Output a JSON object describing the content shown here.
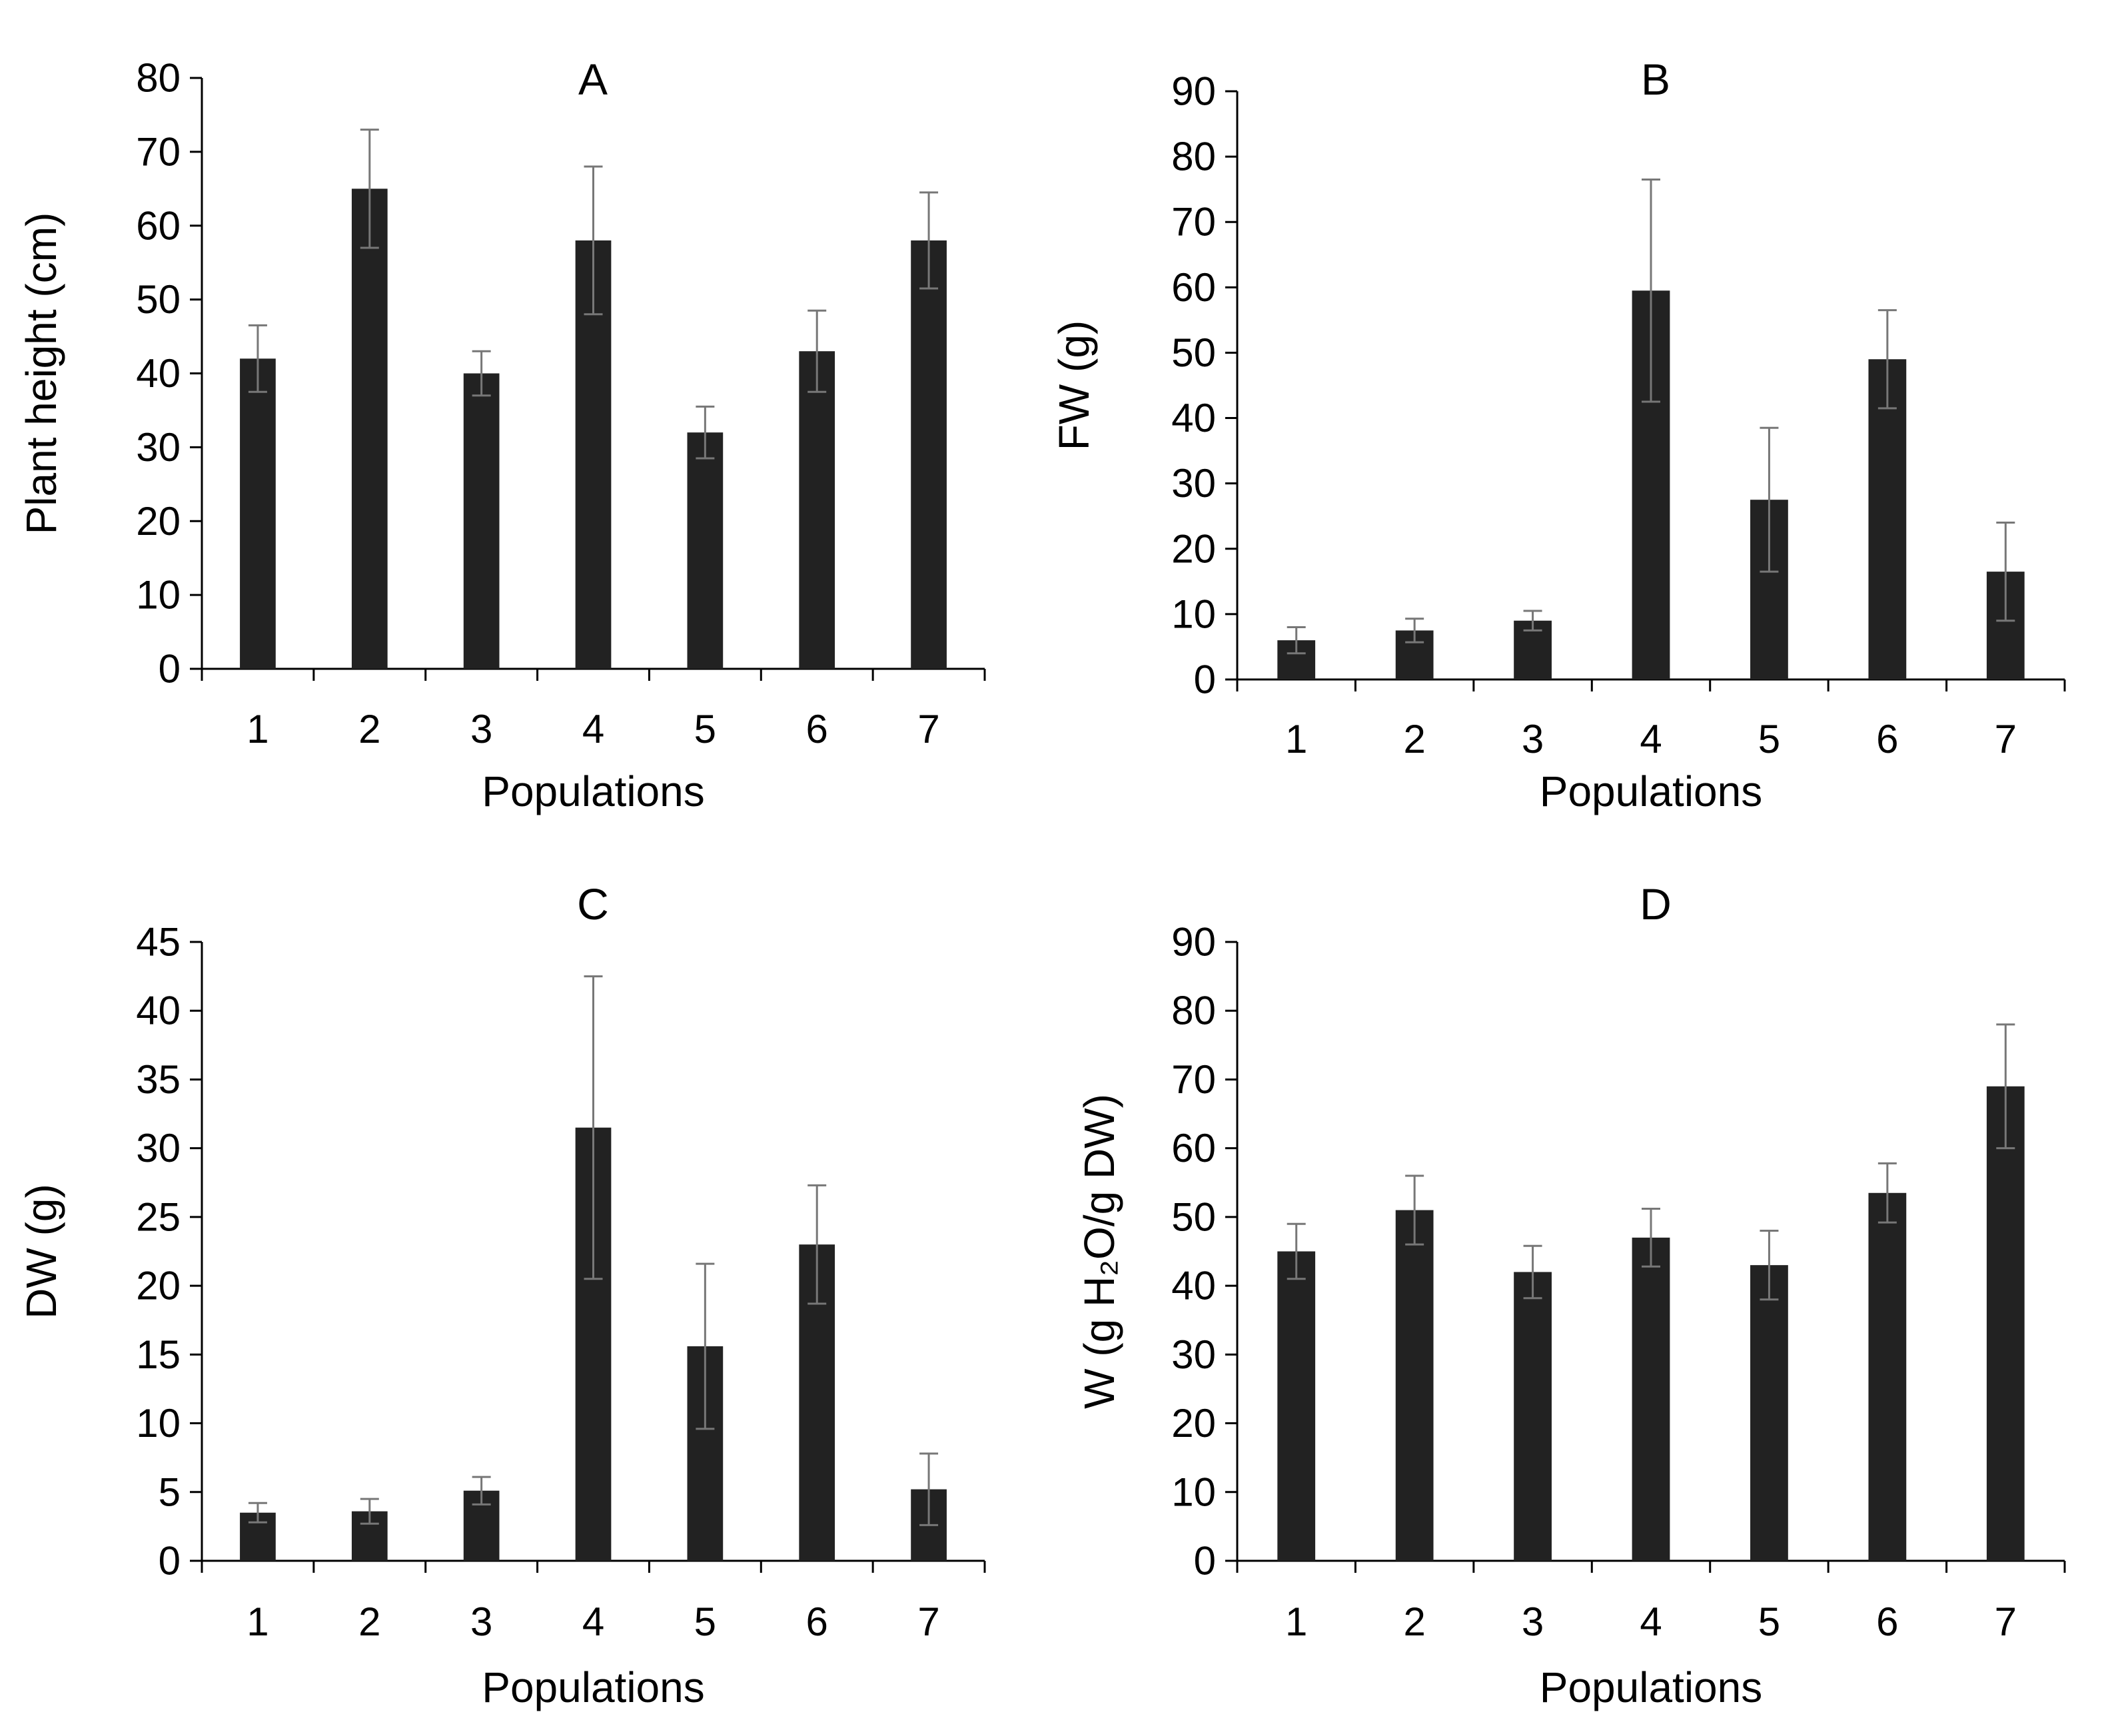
{
  "chart_data": [
    {
      "type": "bar",
      "title": "A",
      "xlabel": "Populations",
      "ylabel": "Plant height (cm)",
      "categories": [
        "1",
        "2",
        "3",
        "4",
        "5",
        "6",
        "7"
      ],
      "series": [
        {
          "name": "Plant height",
          "values": [
            42,
            65,
            40,
            58,
            32,
            43,
            58
          ],
          "errors": [
            4.5,
            8,
            3,
            10,
            3.5,
            5.5,
            6.5
          ]
        }
      ],
      "ylim": [
        0,
        80
      ],
      "yticks": [
        0,
        10,
        20,
        30,
        40,
        50,
        60,
        70,
        80
      ],
      "bar_color": "#222222",
      "error_color": "#777777"
    },
    {
      "type": "bar",
      "title": "B",
      "xlabel": "Populations",
      "ylabel": "FW (g)",
      "categories": [
        "1",
        "2",
        "3",
        "4",
        "5",
        "6",
        "7"
      ],
      "series": [
        {
          "name": "FW",
          "values": [
            6,
            7.5,
            9,
            59.5,
            27.5,
            49,
            16.5
          ],
          "errors": [
            2,
            1.8,
            1.5,
            17,
            11,
            7.5,
            7.5
          ]
        }
      ],
      "ylim": [
        0,
        90
      ],
      "yticks": [
        0,
        10,
        20,
        30,
        40,
        50,
        60,
        70,
        80,
        90
      ],
      "bar_color": "#222222",
      "error_color": "#777777"
    },
    {
      "type": "bar",
      "title": "C",
      "xlabel": "Populations",
      "ylabel": "DW (g)",
      "categories": [
        "1",
        "2",
        "3",
        "4",
        "5",
        "6",
        "7"
      ],
      "series": [
        {
          "name": "DW",
          "values": [
            3.5,
            3.6,
            5.1,
            31.5,
            15.6,
            23,
            5.2
          ],
          "errors": [
            0.7,
            0.9,
            1,
            11,
            6,
            4.3,
            2.6
          ]
        }
      ],
      "ylim": [
        0,
        45
      ],
      "yticks": [
        0,
        5,
        10,
        15,
        20,
        25,
        30,
        35,
        40,
        45
      ],
      "bar_color": "#222222",
      "error_color": "#777777"
    },
    {
      "type": "bar",
      "title": "D",
      "xlabel": "Populations",
      "ylabel": "W (g H₂O/g DW)",
      "categories": [
        "1",
        "2",
        "3",
        "4",
        "5",
        "6",
        "7"
      ],
      "series": [
        {
          "name": "W",
          "values": [
            45,
            51,
            42,
            47,
            43,
            53.5,
            69
          ],
          "errors": [
            4,
            5,
            3.8,
            4.2,
            5,
            4.3,
            9
          ]
        }
      ],
      "ylim": [
        0,
        90
      ],
      "yticks": [
        0,
        10,
        20,
        30,
        40,
        50,
        60,
        70,
        80,
        90
      ],
      "bar_color": "#222222",
      "error_color": "#777777"
    }
  ]
}
